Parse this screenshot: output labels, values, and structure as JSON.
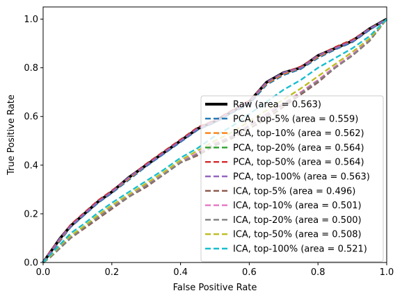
{
  "chart_data": {
    "type": "line",
    "xlabel": "False Positive Rate",
    "ylabel": "True Positive Rate",
    "xlim": [
      0.0,
      1.0
    ],
    "ylim": [
      0.0,
      1.05
    ],
    "xticks": [
      "0.0",
      "0.2",
      "0.4",
      "0.6",
      "0.8",
      "1.0"
    ],
    "yticks": [
      "0.0",
      "0.2",
      "0.4",
      "0.6",
      "0.8",
      "1.0"
    ],
    "legend_position": "lower-right",
    "grid": false,
    "series": [
      {
        "name": "Raw (area = 0.563)",
        "color": "#000000",
        "style": "solid",
        "points": [
          [
            0,
            0
          ],
          [
            0.02,
            0.04
          ],
          [
            0.05,
            0.1
          ],
          [
            0.08,
            0.15
          ],
          [
            0.12,
            0.2
          ],
          [
            0.16,
            0.25
          ],
          [
            0.2,
            0.29
          ],
          [
            0.25,
            0.35
          ],
          [
            0.3,
            0.4
          ],
          [
            0.35,
            0.45
          ],
          [
            0.4,
            0.5
          ],
          [
            0.45,
            0.55
          ],
          [
            0.5,
            0.58
          ],
          [
            0.55,
            0.62
          ],
          [
            0.6,
            0.66
          ],
          [
            0.65,
            0.74
          ],
          [
            0.7,
            0.78
          ],
          [
            0.75,
            0.8
          ],
          [
            0.8,
            0.85
          ],
          [
            0.85,
            0.88
          ],
          [
            0.9,
            0.91
          ],
          [
            0.95,
            0.96
          ],
          [
            1.0,
            1.0
          ]
        ]
      },
      {
        "name": "PCA, top-5% (area = 0.559)",
        "color": "#1f77b4",
        "style": "dashed",
        "points": [
          [
            0,
            0
          ],
          [
            0.02,
            0.035
          ],
          [
            0.05,
            0.09
          ],
          [
            0.08,
            0.145
          ],
          [
            0.12,
            0.195
          ],
          [
            0.16,
            0.245
          ],
          [
            0.2,
            0.285
          ],
          [
            0.25,
            0.34
          ],
          [
            0.3,
            0.395
          ],
          [
            0.35,
            0.445
          ],
          [
            0.4,
            0.495
          ],
          [
            0.45,
            0.545
          ],
          [
            0.5,
            0.575
          ],
          [
            0.55,
            0.615
          ],
          [
            0.6,
            0.65
          ],
          [
            0.65,
            0.73
          ],
          [
            0.7,
            0.77
          ],
          [
            0.75,
            0.795
          ],
          [
            0.8,
            0.84
          ],
          [
            0.85,
            0.875
          ],
          [
            0.9,
            0.905
          ],
          [
            0.95,
            0.955
          ],
          [
            1.0,
            1.0
          ]
        ]
      },
      {
        "name": "PCA, top-10% (area = 0.562)",
        "color": "#ff7f0e",
        "style": "dashed",
        "points": [
          [
            0,
            0
          ],
          [
            0.02,
            0.04
          ],
          [
            0.05,
            0.095
          ],
          [
            0.08,
            0.15
          ],
          [
            0.12,
            0.2
          ],
          [
            0.16,
            0.25
          ],
          [
            0.2,
            0.29
          ],
          [
            0.25,
            0.345
          ],
          [
            0.3,
            0.4
          ],
          [
            0.35,
            0.45
          ],
          [
            0.4,
            0.5
          ],
          [
            0.45,
            0.55
          ],
          [
            0.5,
            0.58
          ],
          [
            0.55,
            0.62
          ],
          [
            0.6,
            0.66
          ],
          [
            0.65,
            0.735
          ],
          [
            0.7,
            0.775
          ],
          [
            0.75,
            0.8
          ],
          [
            0.8,
            0.845
          ],
          [
            0.85,
            0.88
          ],
          [
            0.9,
            0.91
          ],
          [
            0.95,
            0.96
          ],
          [
            1.0,
            1.0
          ]
        ]
      },
      {
        "name": "PCA, top-20% (area = 0.564)",
        "color": "#2ca02c",
        "style": "dashed",
        "points": [
          [
            0,
            0
          ],
          [
            0.02,
            0.045
          ],
          [
            0.05,
            0.1
          ],
          [
            0.08,
            0.155
          ],
          [
            0.12,
            0.205
          ],
          [
            0.16,
            0.255
          ],
          [
            0.2,
            0.295
          ],
          [
            0.25,
            0.35
          ],
          [
            0.3,
            0.405
          ],
          [
            0.35,
            0.455
          ],
          [
            0.4,
            0.505
          ],
          [
            0.45,
            0.555
          ],
          [
            0.5,
            0.585
          ],
          [
            0.55,
            0.625
          ],
          [
            0.6,
            0.665
          ],
          [
            0.65,
            0.74
          ],
          [
            0.7,
            0.78
          ],
          [
            0.75,
            0.805
          ],
          [
            0.8,
            0.85
          ],
          [
            0.85,
            0.885
          ],
          [
            0.9,
            0.915
          ],
          [
            0.95,
            0.96
          ],
          [
            1.0,
            1.0
          ]
        ]
      },
      {
        "name": "PCA, top-50% (area = 0.564)",
        "color": "#d62728",
        "style": "dashed",
        "points": [
          [
            0,
            0
          ],
          [
            0.02,
            0.045
          ],
          [
            0.05,
            0.1
          ],
          [
            0.08,
            0.155
          ],
          [
            0.12,
            0.205
          ],
          [
            0.16,
            0.255
          ],
          [
            0.2,
            0.295
          ],
          [
            0.25,
            0.35
          ],
          [
            0.3,
            0.405
          ],
          [
            0.35,
            0.455
          ],
          [
            0.4,
            0.505
          ],
          [
            0.45,
            0.555
          ],
          [
            0.5,
            0.585
          ],
          [
            0.55,
            0.625
          ],
          [
            0.6,
            0.665
          ],
          [
            0.65,
            0.74
          ],
          [
            0.7,
            0.78
          ],
          [
            0.75,
            0.805
          ],
          [
            0.8,
            0.85
          ],
          [
            0.85,
            0.885
          ],
          [
            0.9,
            0.915
          ],
          [
            0.95,
            0.96
          ],
          [
            1.0,
            1.0
          ]
        ]
      },
      {
        "name": "PCA, top-100% (area = 0.563)",
        "color": "#9467bd",
        "style": "dashed",
        "points": [
          [
            0,
            0
          ],
          [
            0.02,
            0.04
          ],
          [
            0.05,
            0.1
          ],
          [
            0.08,
            0.15
          ],
          [
            0.12,
            0.2
          ],
          [
            0.16,
            0.25
          ],
          [
            0.2,
            0.29
          ],
          [
            0.25,
            0.35
          ],
          [
            0.3,
            0.4
          ],
          [
            0.35,
            0.45
          ],
          [
            0.4,
            0.5
          ],
          [
            0.45,
            0.55
          ],
          [
            0.5,
            0.58
          ],
          [
            0.55,
            0.62
          ],
          [
            0.6,
            0.66
          ],
          [
            0.65,
            0.74
          ],
          [
            0.7,
            0.78
          ],
          [
            0.75,
            0.8
          ],
          [
            0.8,
            0.85
          ],
          [
            0.85,
            0.88
          ],
          [
            0.9,
            0.91
          ],
          [
            0.95,
            0.96
          ],
          [
            1.0,
            1.0
          ]
        ]
      },
      {
        "name": "ICA, top-5% (area = 0.496)",
        "color": "#8c564b",
        "style": "dashed",
        "points": [
          [
            0,
            0
          ],
          [
            0.02,
            0.02
          ],
          [
            0.05,
            0.06
          ],
          [
            0.08,
            0.1
          ],
          [
            0.12,
            0.14
          ],
          [
            0.16,
            0.18
          ],
          [
            0.2,
            0.22
          ],
          [
            0.25,
            0.27
          ],
          [
            0.3,
            0.31
          ],
          [
            0.35,
            0.36
          ],
          [
            0.4,
            0.41
          ],
          [
            0.45,
            0.44
          ],
          [
            0.5,
            0.48
          ],
          [
            0.55,
            0.51
          ],
          [
            0.6,
            0.55
          ],
          [
            0.65,
            0.59
          ],
          [
            0.7,
            0.64
          ],
          [
            0.75,
            0.69
          ],
          [
            0.8,
            0.74
          ],
          [
            0.85,
            0.8
          ],
          [
            0.9,
            0.85
          ],
          [
            0.95,
            0.91
          ],
          [
            1.0,
            1.0
          ]
        ]
      },
      {
        "name": "ICA, top-10% (area = 0.501)",
        "color": "#e377c2",
        "style": "dashed",
        "points": [
          [
            0,
            0
          ],
          [
            0.02,
            0.025
          ],
          [
            0.05,
            0.065
          ],
          [
            0.08,
            0.105
          ],
          [
            0.12,
            0.145
          ],
          [
            0.16,
            0.19
          ],
          [
            0.2,
            0.23
          ],
          [
            0.25,
            0.275
          ],
          [
            0.3,
            0.32
          ],
          [
            0.35,
            0.365
          ],
          [
            0.4,
            0.415
          ],
          [
            0.45,
            0.45
          ],
          [
            0.5,
            0.49
          ],
          [
            0.55,
            0.52
          ],
          [
            0.6,
            0.565
          ],
          [
            0.65,
            0.61
          ],
          [
            0.7,
            0.655
          ],
          [
            0.75,
            0.7
          ],
          [
            0.8,
            0.75
          ],
          [
            0.85,
            0.805
          ],
          [
            0.9,
            0.855
          ],
          [
            0.95,
            0.915
          ],
          [
            1.0,
            1.0
          ]
        ]
      },
      {
        "name": "ICA, top-20% (area = 0.500)",
        "color": "#7f7f7f",
        "style": "dashed",
        "points": [
          [
            0,
            0
          ],
          [
            0.02,
            0.02
          ],
          [
            0.05,
            0.06
          ],
          [
            0.08,
            0.1
          ],
          [
            0.12,
            0.145
          ],
          [
            0.16,
            0.185
          ],
          [
            0.2,
            0.225
          ],
          [
            0.25,
            0.27
          ],
          [
            0.3,
            0.315
          ],
          [
            0.35,
            0.36
          ],
          [
            0.4,
            0.41
          ],
          [
            0.45,
            0.445
          ],
          [
            0.5,
            0.485
          ],
          [
            0.55,
            0.515
          ],
          [
            0.6,
            0.56
          ],
          [
            0.65,
            0.6
          ],
          [
            0.7,
            0.65
          ],
          [
            0.75,
            0.695
          ],
          [
            0.8,
            0.745
          ],
          [
            0.85,
            0.8
          ],
          [
            0.9,
            0.85
          ],
          [
            0.95,
            0.91
          ],
          [
            1.0,
            1.0
          ]
        ]
      },
      {
        "name": "ICA, top-50% (area = 0.508)",
        "color": "#bcbd22",
        "style": "dashed",
        "points": [
          [
            0,
            0
          ],
          [
            0.02,
            0.025
          ],
          [
            0.05,
            0.07
          ],
          [
            0.08,
            0.11
          ],
          [
            0.12,
            0.15
          ],
          [
            0.16,
            0.195
          ],
          [
            0.2,
            0.235
          ],
          [
            0.25,
            0.28
          ],
          [
            0.3,
            0.325
          ],
          [
            0.35,
            0.37
          ],
          [
            0.4,
            0.42
          ],
          [
            0.45,
            0.46
          ],
          [
            0.5,
            0.5
          ],
          [
            0.55,
            0.535
          ],
          [
            0.6,
            0.58
          ],
          [
            0.65,
            0.625
          ],
          [
            0.7,
            0.67
          ],
          [
            0.75,
            0.715
          ],
          [
            0.8,
            0.765
          ],
          [
            0.85,
            0.815
          ],
          [
            0.9,
            0.865
          ],
          [
            0.95,
            0.92
          ],
          [
            1.0,
            1.0
          ]
        ]
      },
      {
        "name": "ICA, top-100% (area = 0.521)",
        "color": "#17becf",
        "style": "dashed",
        "points": [
          [
            0,
            0
          ],
          [
            0.02,
            0.03
          ],
          [
            0.05,
            0.075
          ],
          [
            0.08,
            0.12
          ],
          [
            0.12,
            0.16
          ],
          [
            0.16,
            0.205
          ],
          [
            0.2,
            0.245
          ],
          [
            0.25,
            0.29
          ],
          [
            0.3,
            0.335
          ],
          [
            0.35,
            0.38
          ],
          [
            0.4,
            0.43
          ],
          [
            0.45,
            0.47
          ],
          [
            0.5,
            0.52
          ],
          [
            0.55,
            0.56
          ],
          [
            0.6,
            0.61
          ],
          [
            0.65,
            0.66
          ],
          [
            0.7,
            0.71
          ],
          [
            0.75,
            0.75
          ],
          [
            0.8,
            0.8
          ],
          [
            0.85,
            0.84
          ],
          [
            0.9,
            0.88
          ],
          [
            0.95,
            0.93
          ],
          [
            1.0,
            1.0
          ]
        ]
      }
    ]
  }
}
